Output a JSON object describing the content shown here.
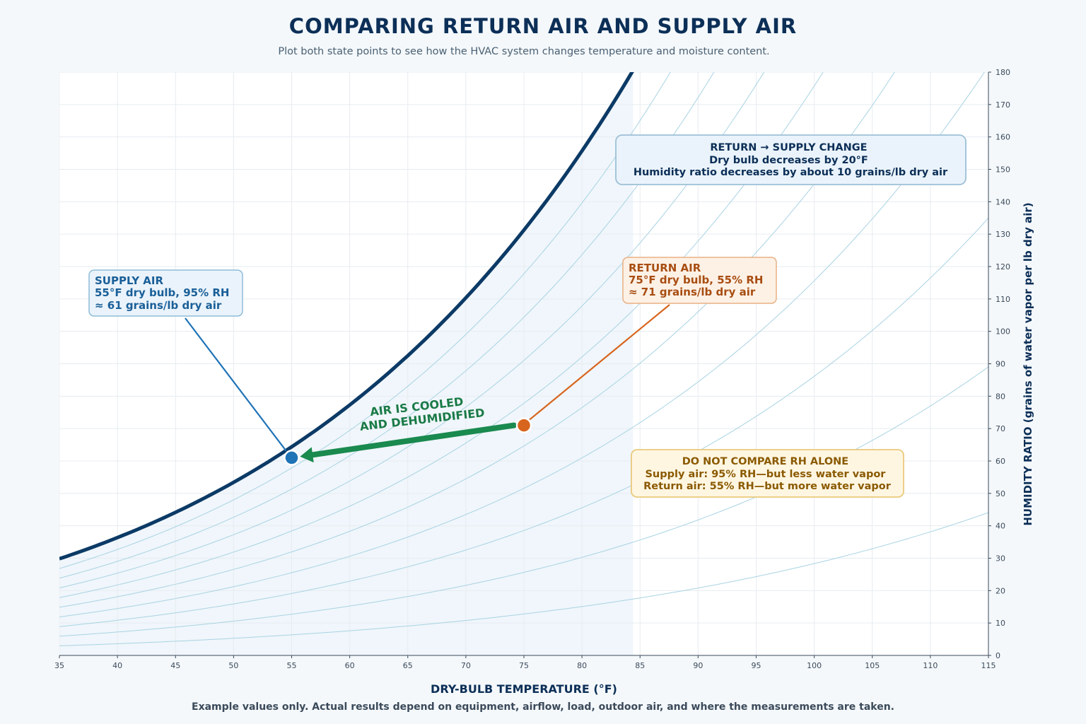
{
  "title": "COMPARING RETURN AIR AND SUPPLY AIR",
  "subtitle": "Plot both state points to see how the HVAC system changes temperature and moisture content.",
  "footnote": "Example values only. Actual results depend on equipment, airflow, load, outdoor air, and where the measurements are taken.",
  "colors": {
    "background": "#f4f8fb",
    "saturation_curve": "#0c3a66",
    "rh_curves": "#a9d3e3",
    "supply": "#1f73b7",
    "return": "#d8651d",
    "process_arrow": "#1a8a4f",
    "note_text": "#8a5a00"
  },
  "chart_data": {
    "type": "scatter",
    "xlabel": "DRY-BULB TEMPERATURE (°F)",
    "ylabel": "HUMIDITY RATIO (grains of water vapor per lb dry air)",
    "xlim": [
      35,
      115
    ],
    "ylim": [
      0,
      180
    ],
    "xticks": [
      35,
      40,
      45,
      50,
      55,
      60,
      65,
      70,
      75,
      80,
      85,
      90,
      95,
      100,
      105,
      110,
      115
    ],
    "yticks": [
      0,
      10,
      20,
      30,
      40,
      50,
      60,
      70,
      80,
      90,
      100,
      110,
      120,
      130,
      140,
      150,
      160,
      170,
      180
    ],
    "y_axis_side": "right",
    "grid": true,
    "background_curves": "saturation curve (100% RH) and constant relative humidity curves in 10% steps",
    "comfort_region_xmax": 84.4,
    "points": [
      {
        "id": "supply",
        "x": 55,
        "y": 61,
        "label": [
          "SUPPLY AIR",
          "55°F dry bulb, 95% RH",
          "≈ 61 grains/lb dry air"
        ]
      },
      {
        "id": "return",
        "x": 75,
        "y": 71,
        "label": [
          "RETURN AIR",
          "75°F dry bulb, 55% RH",
          "≈ 71 grains/lb dry air"
        ]
      }
    ],
    "process_arrow": {
      "from": "return",
      "to": "supply",
      "label": [
        "AIR IS COOLED",
        "AND DEHUMIDIFIED"
      ]
    },
    "annotations": {
      "change_box": [
        "RETURN → SUPPLY CHANGE",
        "Dry bulb decreases by 20°F",
        "Humidity ratio decreases by about 10 grains/lb dry air"
      ],
      "rh_note": [
        "DO NOT COMPARE RH ALONE",
        "Supply air: 95% RH—but less water vapor",
        "Return air: 55% RH—but more water vapor"
      ]
    }
  }
}
